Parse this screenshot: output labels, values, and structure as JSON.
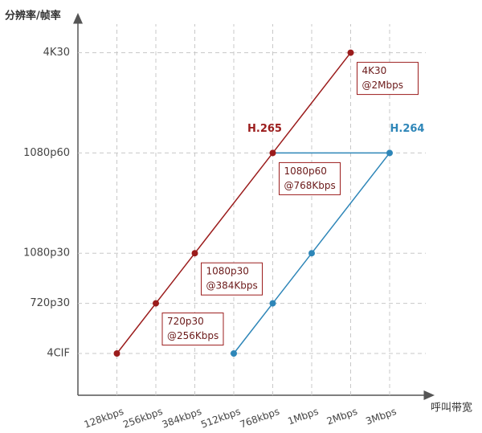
{
  "chart_data": {
    "type": "line",
    "y_axis_title": "分辨率/帧率",
    "x_axis_title": "呼叫带宽",
    "categories": [
      "128kbps",
      "256kbps",
      "384kbps",
      "512kbps",
      "768kbps",
      "1Mbps",
      "2Mbps",
      "3Mbps"
    ],
    "ylim": [
      0,
      9
    ],
    "yticks": [
      {
        "value": 1,
        "label": "4CIF"
      },
      {
        "value": 2.2,
        "label": "720p30"
      },
      {
        "value": 3.4,
        "label": "1080p30"
      },
      {
        "value": 5.8,
        "label": "1080p60"
      },
      {
        "value": 8.2,
        "label": "4K30"
      }
    ],
    "grid": true,
    "series": [
      {
        "name": "H.265",
        "color": "#9b1c1c",
        "x": [
          "128kbps",
          "256kbps",
          "384kbps",
          "768kbps",
          "2Mbps"
        ],
        "values": [
          1,
          2.2,
          3.4,
          5.8,
          8.2
        ]
      },
      {
        "name": "H.264",
        "color": "#2e86b8",
        "x": [
          "512kbps",
          "768kbps",
          "1Mbps",
          "3Mbps"
        ],
        "values": [
          1,
          2.2,
          3.4,
          5.8
        ]
      }
    ],
    "annotations": [
      [
        "720p30",
        "@256Kbps"
      ],
      [
        "1080p30",
        "@384Kbps"
      ],
      [
        "1080p60",
        "@768Kbps"
      ],
      [
        "4K30",
        "@2Mbps"
      ]
    ]
  }
}
